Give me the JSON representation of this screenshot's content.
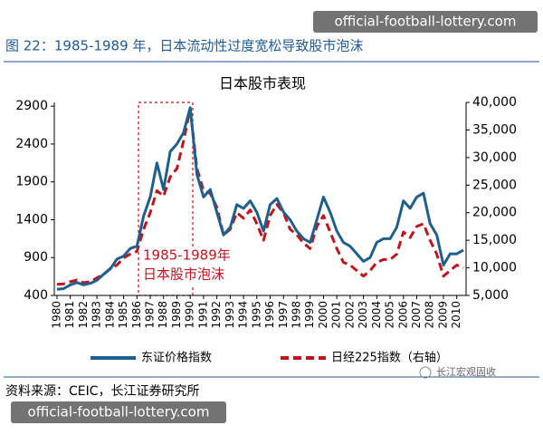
{
  "header": {
    "title": "图 22：1985-1989 年，日本流动性过度宽松导致股市泡沫"
  },
  "chart_data": {
    "type": "line",
    "title": "日本股市表现",
    "x": [
      1980,
      1980.5,
      1981,
      1981.5,
      1982,
      1982.5,
      1983,
      1983.5,
      1984,
      1984.5,
      1985,
      1985.5,
      1986,
      1986.5,
      1987,
      1987.5,
      1988,
      1988.5,
      1989,
      1989.5,
      1990,
      1990.5,
      1991,
      1991.5,
      1992,
      1992.5,
      1993,
      1993.5,
      1994,
      1994.5,
      1995,
      1995.5,
      1996,
      1996.5,
      1997,
      1997.5,
      1998,
      1998.5,
      1999,
      1999.5,
      2000,
      2000.5,
      2001,
      2001.5,
      2002,
      2002.5,
      2003,
      2003.5,
      2004,
      2004.5,
      2005,
      2005.5,
      2006,
      2006.5,
      2007,
      2007.5,
      2008,
      2008.5,
      2009,
      2009.5,
      2010,
      2010.5
    ],
    "series": [
      {
        "name": "东证价格指数",
        "color": "#1f5f8b",
        "dashed": false,
        "values": [
          480,
          490,
          540,
          570,
          540,
          560,
          600,
          680,
          750,
          880,
          920,
          1020,
          1050,
          1450,
          1700,
          2150,
          1800,
          2300,
          2400,
          2550,
          2880,
          2000,
          1700,
          1800,
          1500,
          1200,
          1300,
          1600,
          1550,
          1650,
          1500,
          1250,
          1600,
          1680,
          1500,
          1400,
          1250,
          1150,
          1100,
          1400,
          1700,
          1500,
          1250,
          1100,
          1050,
          950,
          850,
          900,
          1100,
          1150,
          1150,
          1300,
          1650,
          1550,
          1700,
          1750,
          1350,
          1200,
          800,
          950,
          950,
          1000
        ]
      },
      {
        "name": "日经225指数（右轴）",
        "color": "#c0141c",
        "dashed": true,
        "axis": "y2",
        "values": [
          7000,
          7100,
          7500,
          7800,
          7300,
          7500,
          8200,
          8800,
          9900,
          10500,
          11800,
          12500,
          13000,
          17000,
          20000,
          24000,
          23000,
          26500,
          28000,
          33000,
          38900,
          28000,
          24000,
          23500,
          21000,
          16000,
          17000,
          20000,
          19000,
          20500,
          18000,
          15000,
          19500,
          21500,
          20000,
          17000,
          16000,
          14500,
          13500,
          17500,
          19500,
          16500,
          13500,
          11000,
          10500,
          9500,
          8500,
          9500,
          11000,
          11500,
          11500,
          12500,
          16500,
          15500,
          17500,
          18000,
          15000,
          12500,
          8500,
          9500,
          10500,
          10000
        ]
      }
    ],
    "xlim": [
      1979.8,
      2010.7
    ],
    "xticks": [
      1980,
      1981,
      1982,
      1983,
      1984,
      1985,
      1986,
      1987,
      1988,
      1989,
      1990,
      1991,
      1992,
      1993,
      1994,
      1995,
      1996,
      1997,
      1998,
      1999,
      2000,
      2001,
      2002,
      2003,
      2004,
      2005,
      2006,
      2007,
      2008,
      2009,
      2010
    ],
    "ylim": [
      400,
      2950
    ],
    "yticks": [
      400,
      900,
      1400,
      1900,
      2400,
      2900
    ],
    "y2lim": [
      5000,
      40000
    ],
    "y2ticks": [
      {
        "value": 5000,
        "label": "5,000"
      },
      {
        "value": 10000,
        "label": "10,000"
      },
      {
        "value": 15000,
        "label": "15,000"
      },
      {
        "value": 20000,
        "label": "20,000"
      },
      {
        "value": 25000,
        "label": "25,000"
      },
      {
        "value": 30000,
        "label": "30,000"
      },
      {
        "value": 35000,
        "label": "35,000"
      },
      {
        "value": 40000,
        "label": "40,000"
      }
    ],
    "annotations": [
      "1985-1989年",
      "日本股市泡沫"
    ],
    "legend": "bottom"
  },
  "footer": {
    "source": "资料来源：CEIC，长江证券研究所",
    "brand": "长江宏观固收"
  },
  "watermarks": [
    "official-football-lottery.com",
    "official-football-lottery.com"
  ]
}
